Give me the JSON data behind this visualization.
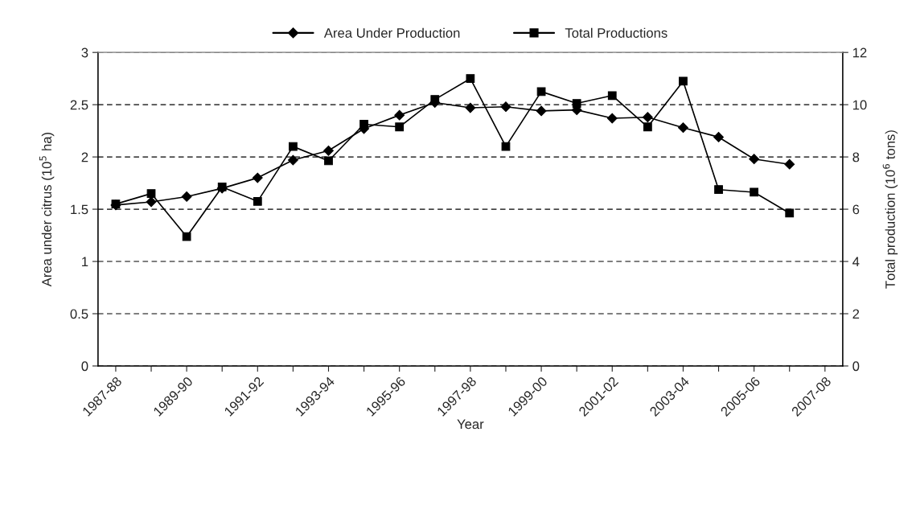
{
  "chart_data": {
    "type": "line",
    "xlabel": "Year",
    "ylabel": "Area under citrus (10$^{5}$ ha)",
    "y2label": "Total production (10$^{6}$ tons)",
    "categories": [
      "1987-88",
      null,
      "1989-90",
      null,
      "1991-92",
      null,
      "1993-94",
      null,
      "1995-96",
      null,
      "1997-98",
      null,
      "1999-00",
      null,
      "2001-02",
      null,
      "2003-04",
      null,
      "2005-06",
      null,
      "2007-08"
    ],
    "series": [
      {
        "name": "Area Under Production",
        "color": "#000000",
        "marker": "diamond",
        "values": [
          1.54,
          1.57,
          1.62,
          1.7,
          1.8,
          1.97,
          2.06,
          2.27,
          2.4,
          2.52,
          2.47,
          2.48,
          2.44,
          2.45,
          2.37,
          2.38,
          2.28,
          2.19,
          1.98,
          1.93,
          null
        ]
      },
      {
        "name": "Total Productions",
        "color": "#000000",
        "marker": "square",
        "axis": "y2",
        "values": [
          6.2,
          6.6,
          4.95,
          6.85,
          6.3,
          8.4,
          7.85,
          9.25,
          9.15,
          10.2,
          11.0,
          8.4,
          10.5,
          10.05,
          10.35,
          9.15,
          10.9,
          6.75,
          6.65,
          5.85,
          null
        ]
      }
    ],
    "ylim": [
      0,
      3
    ],
    "yticks": [
      0,
      0.5,
      1,
      1.5,
      2,
      2.5,
      3
    ],
    "y2lim": [
      0,
      12
    ],
    "y2ticks": [
      0,
      2,
      4,
      6,
      8,
      10,
      12
    ],
    "grid": "y",
    "legend": "top",
    "line_style": "solid"
  }
}
